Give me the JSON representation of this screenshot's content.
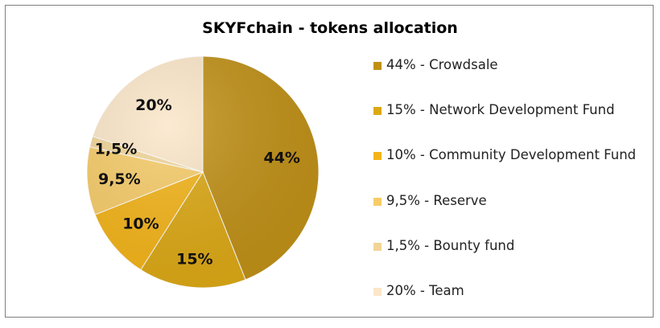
{
  "chart_data": {
    "type": "pie",
    "title": "SKYFchain - tokens allocation",
    "categories": [
      "Crowdsale",
      "Network Development Fund",
      "Community Development Fund",
      "Reserve",
      "Bounty fund",
      "Team"
    ],
    "values": [
      44,
      15,
      10,
      9.5,
      1.5,
      20
    ],
    "slice_labels": [
      "44%",
      "15%",
      "10%",
      "9,5%",
      "1,5%",
      "20%"
    ],
    "legend": [
      "44% - Crowdsale",
      "15% - Network Development Fund",
      "10% - Community Development Fund",
      "9,5% - Reserve",
      "1,5% - Bounty fund",
      "20% - Team"
    ],
    "colors": [
      "#C09016",
      "#DCA814",
      "#F4B418",
      "#F7CC68",
      "#F1D598",
      "#FBE6C8"
    ],
    "legend_position": "right",
    "start_angle": "12 o'clock",
    "direction": "clockwise"
  }
}
